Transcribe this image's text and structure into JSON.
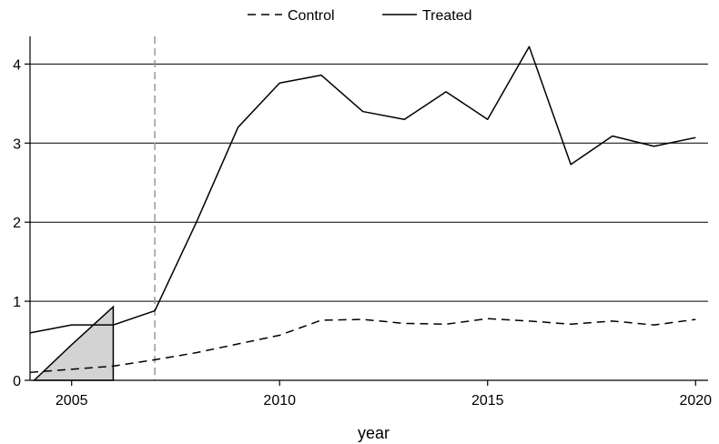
{
  "chart_data": {
    "type": "line",
    "xlabel": "year",
    "ylabel": "",
    "xlim": [
      2004,
      2020.3
    ],
    "ylim": [
      0,
      4.35
    ],
    "x_ticks": [
      2005,
      2010,
      2015,
      2020
    ],
    "y_ticks": [
      0,
      1,
      2,
      3,
      4
    ],
    "grid": "horizontal",
    "legend": {
      "position": "top",
      "entries": [
        "Control",
        "Treated"
      ]
    },
    "reference_line": {
      "x": 2007,
      "style": "dashed",
      "color": "#999999"
    },
    "shaded_triangle": {
      "points": [
        [
          2004.1,
          0.0
        ],
        [
          2006.0,
          0.0
        ],
        [
          2006.0,
          0.93
        ],
        [
          2005.0,
          0.45
        ]
      ],
      "fill": "#d3d3d3"
    },
    "series": [
      {
        "name": "Control",
        "style": "dashed",
        "color": "#000000",
        "x": [
          2004,
          2005,
          2006,
          2007,
          2008,
          2009,
          2010,
          2011,
          2012,
          2013,
          2014,
          2015,
          2016,
          2017,
          2018,
          2019,
          2020
        ],
        "y": [
          0.1,
          0.14,
          0.18,
          0.26,
          0.35,
          0.46,
          0.57,
          0.76,
          0.77,
          0.72,
          0.71,
          0.78,
          0.75,
          0.71,
          0.75,
          0.7,
          0.77
        ]
      },
      {
        "name": "Treated",
        "style": "solid",
        "color": "#000000",
        "x": [
          2004,
          2005,
          2006,
          2007,
          2008,
          2009,
          2010,
          2011,
          2012,
          2013,
          2014,
          2015,
          2016,
          2017,
          2018,
          2019,
          2020
        ],
        "y": [
          0.6,
          0.7,
          0.7,
          0.88,
          2.0,
          3.2,
          3.76,
          3.86,
          3.4,
          3.3,
          3.65,
          3.3,
          4.22,
          2.73,
          3.09,
          2.96,
          3.07
        ]
      }
    ]
  }
}
